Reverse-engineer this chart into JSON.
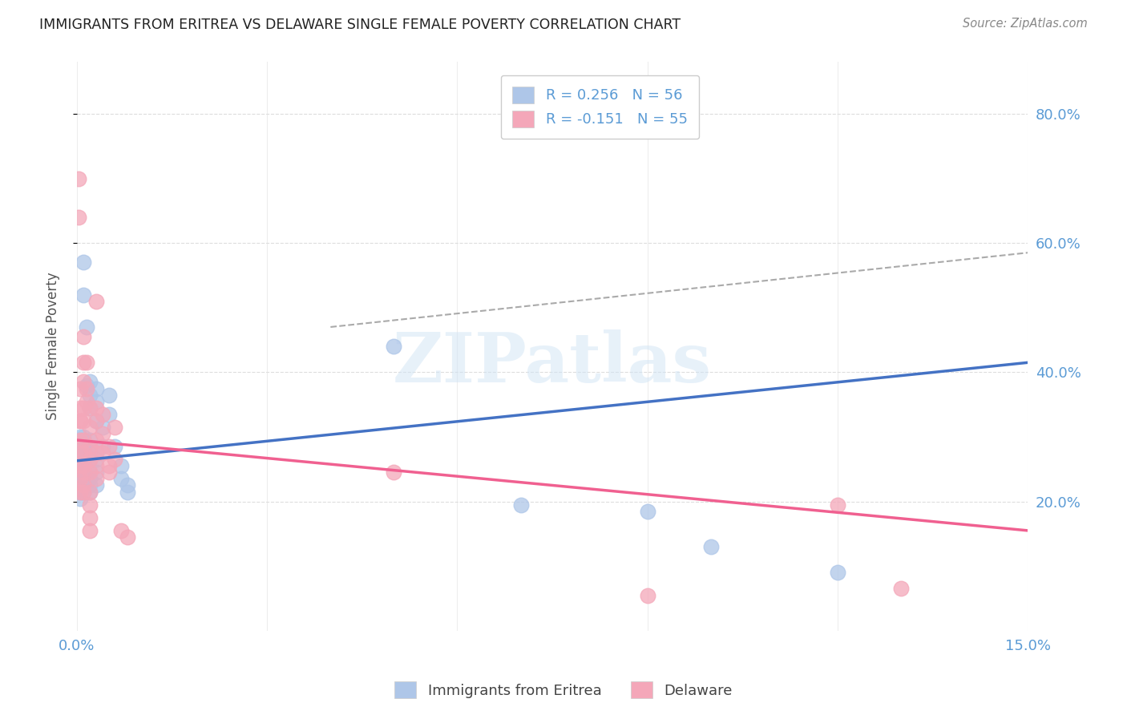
{
  "title": "IMMIGRANTS FROM ERITREA VS DELAWARE SINGLE FEMALE POVERTY CORRELATION CHART",
  "source": "Source: ZipAtlas.com",
  "ylabel": "Single Female Poverty",
  "ylabel_right_ticks": [
    "80.0%",
    "60.0%",
    "40.0%",
    "20.0%"
  ],
  "ylabel_right_vals": [
    0.8,
    0.6,
    0.4,
    0.2
  ],
  "xmin": 0.0,
  "xmax": 0.15,
  "ymin": 0.0,
  "ymax": 0.88,
  "legend_series": [
    {
      "label": "R = 0.256   N = 56",
      "color": "#aec6e8"
    },
    {
      "label": "R = -0.151   N = 55",
      "color": "#f4a7b9"
    }
  ],
  "legend_bottom": [
    {
      "label": "Immigrants from Eritrea",
      "color": "#aec6e8"
    },
    {
      "label": "Delaware",
      "color": "#f4a7b9"
    }
  ],
  "watermark": "ZIPatlas",
  "series1_color": "#aec6e8",
  "series2_color": "#f4a7b9",
  "trend1_color": "#4472c4",
  "trend2_color": "#f06090",
  "grid_color": "#dddddd",
  "background_color": "#ffffff",
  "title_color": "#222222",
  "axis_color": "#5b9bd5",
  "series1_points": [
    [
      0.0005,
      0.265
    ],
    [
      0.0005,
      0.275
    ],
    [
      0.0005,
      0.285
    ],
    [
      0.0005,
      0.295
    ],
    [
      0.0005,
      0.255
    ],
    [
      0.0005,
      0.245
    ],
    [
      0.0005,
      0.235
    ],
    [
      0.0005,
      0.225
    ],
    [
      0.0005,
      0.215
    ],
    [
      0.0005,
      0.205
    ],
    [
      0.0005,
      0.28
    ],
    [
      0.0005,
      0.3
    ],
    [
      0.001,
      0.265
    ],
    [
      0.001,
      0.275
    ],
    [
      0.001,
      0.285
    ],
    [
      0.001,
      0.295
    ],
    [
      0.001,
      0.245
    ],
    [
      0.001,
      0.235
    ],
    [
      0.001,
      0.225
    ],
    [
      0.001,
      0.215
    ],
    [
      0.001,
      0.3
    ],
    [
      0.001,
      0.57
    ],
    [
      0.001,
      0.52
    ],
    [
      0.0015,
      0.38
    ],
    [
      0.0015,
      0.47
    ],
    [
      0.002,
      0.265
    ],
    [
      0.002,
      0.275
    ],
    [
      0.002,
      0.285
    ],
    [
      0.002,
      0.295
    ],
    [
      0.002,
      0.245
    ],
    [
      0.002,
      0.235
    ],
    [
      0.002,
      0.225
    ],
    [
      0.002,
      0.215
    ],
    [
      0.002,
      0.345
    ],
    [
      0.002,
      0.365
    ],
    [
      0.002,
      0.385
    ],
    [
      0.003,
      0.355
    ],
    [
      0.003,
      0.375
    ],
    [
      0.003,
      0.325
    ],
    [
      0.003,
      0.265
    ],
    [
      0.003,
      0.245
    ],
    [
      0.003,
      0.225
    ],
    [
      0.004,
      0.315
    ],
    [
      0.004,
      0.285
    ],
    [
      0.005,
      0.335
    ],
    [
      0.005,
      0.365
    ],
    [
      0.006,
      0.285
    ],
    [
      0.007,
      0.255
    ],
    [
      0.007,
      0.235
    ],
    [
      0.008,
      0.225
    ],
    [
      0.008,
      0.215
    ],
    [
      0.05,
      0.44
    ],
    [
      0.07,
      0.195
    ],
    [
      0.09,
      0.185
    ],
    [
      0.1,
      0.13
    ],
    [
      0.12,
      0.09
    ]
  ],
  "series2_points": [
    [
      0.0002,
      0.7
    ],
    [
      0.0002,
      0.64
    ],
    [
      0.0005,
      0.345
    ],
    [
      0.0005,
      0.375
    ],
    [
      0.0005,
      0.325
    ],
    [
      0.0005,
      0.295
    ],
    [
      0.0005,
      0.275
    ],
    [
      0.0005,
      0.255
    ],
    [
      0.0005,
      0.235
    ],
    [
      0.0005,
      0.215
    ],
    [
      0.0005,
      0.325
    ],
    [
      0.001,
      0.455
    ],
    [
      0.001,
      0.415
    ],
    [
      0.001,
      0.385
    ],
    [
      0.001,
      0.345
    ],
    [
      0.001,
      0.325
    ],
    [
      0.001,
      0.295
    ],
    [
      0.001,
      0.275
    ],
    [
      0.001,
      0.255
    ],
    [
      0.001,
      0.245
    ],
    [
      0.001,
      0.225
    ],
    [
      0.001,
      0.215
    ],
    [
      0.0015,
      0.375
    ],
    [
      0.0015,
      0.355
    ],
    [
      0.0015,
      0.415
    ],
    [
      0.002,
      0.345
    ],
    [
      0.002,
      0.315
    ],
    [
      0.002,
      0.285
    ],
    [
      0.002,
      0.265
    ],
    [
      0.002,
      0.245
    ],
    [
      0.002,
      0.215
    ],
    [
      0.002,
      0.195
    ],
    [
      0.002,
      0.175
    ],
    [
      0.002,
      0.155
    ],
    [
      0.003,
      0.51
    ],
    [
      0.003,
      0.345
    ],
    [
      0.003,
      0.325
    ],
    [
      0.003,
      0.295
    ],
    [
      0.003,
      0.275
    ],
    [
      0.003,
      0.255
    ],
    [
      0.003,
      0.235
    ],
    [
      0.004,
      0.335
    ],
    [
      0.004,
      0.305
    ],
    [
      0.004,
      0.275
    ],
    [
      0.005,
      0.285
    ],
    [
      0.005,
      0.255
    ],
    [
      0.005,
      0.245
    ],
    [
      0.006,
      0.315
    ],
    [
      0.006,
      0.265
    ],
    [
      0.007,
      0.155
    ],
    [
      0.008,
      0.145
    ],
    [
      0.05,
      0.245
    ],
    [
      0.09,
      0.055
    ],
    [
      0.12,
      0.195
    ],
    [
      0.13,
      0.065
    ]
  ]
}
